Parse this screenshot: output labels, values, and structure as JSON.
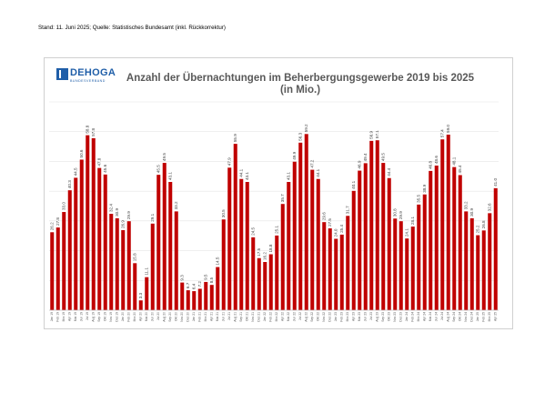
{
  "header": {
    "stand": "Stand: 11. Juni 2025; Quelle: Statistisches Bundesamt (inkl. Rückkorrektur)"
  },
  "logo": {
    "name": "DEHOGA",
    "subtitle": "BUNDESVERBAND",
    "color": "#1f5ea8"
  },
  "chart_data": {
    "type": "bar",
    "title": "Anzahl der Übernachtungen im Beherbergungsgewerbe 2019 bis 2025",
    "subtitle": "(in Mio.)",
    "bar_color": "#c00000",
    "grid": true,
    "ylim": [
      0,
      70
    ],
    "categories": [
      "Jan 19",
      "Feb 19",
      "Mrz 19",
      "Apr 19",
      "Mai 19",
      "Jun 19",
      "Jul 19",
      "Aug 19",
      "Sep 19",
      "Okt 19",
      "Nov 19",
      "Dez 19",
      "Jan 20",
      "Feb 20",
      "Mrz 20",
      "Apr 20",
      "Mai 20",
      "Jun 20",
      "Jul 20",
      "Aug 20",
      "Sep 20",
      "Okt 20",
      "Nov 20",
      "Dez 20",
      "Jan 21",
      "Feb 21",
      "Mrz 21",
      "Apr 21",
      "Mai 21",
      "Jun 21",
      "Jul 21",
      "Aug 21",
      "Sep 21",
      "Okt 21",
      "Nov 21",
      "Dez 21",
      "Jan 22",
      "Feb 22",
      "Mrz 22",
      "Apr 22",
      "Mai 22",
      "Jun 22",
      "Jul 22",
      "Aug 22",
      "Sep 22",
      "Okt 22",
      "Nov 22",
      "Dez 22",
      "Jan 23",
      "Feb 23",
      "Mrz 23",
      "Apr 23",
      "Mai 23",
      "Jun 23",
      "Jul 23",
      "Aug 23",
      "Sep 23",
      "Okt 23",
      "Nov 23",
      "Dez 23",
      "Jan 24",
      "Feb 24",
      "Mrz 24",
      "Apr 24",
      "Mai 24",
      "Jun 24",
      "Jul 24",
      "Aug 24",
      "Sep 24",
      "Okt 24",
      "Nov 24",
      "Dez 24",
      "Jan 25",
      "Feb 25",
      "Mrz 25",
      "Apr 25"
    ],
    "values": [
      26.2,
      27.8,
      33.0,
      40.3,
      44.5,
      50.6,
      58.8,
      57.8,
      47.8,
      45.6,
      32.4,
      30.9,
      26.9,
      29.9,
      15.8,
      3.3,
      11.1,
      29.1,
      45.5,
      49.5,
      43.1,
      33.2,
      9.3,
      6.7,
      6.4,
      7.2,
      9.5,
      8.5,
      14.5,
      30.5,
      47.9,
      55.9,
      44.1,
      43.1,
      24.5,
      17.5,
      16.2,
      18.8,
      25.1,
      35.7,
      43.1,
      49.9,
      56.3,
      59.2,
      47.2,
      44.1,
      29.6,
      27.5,
      24.0,
      25.4,
      31.7,
      40.1,
      46.9,
      49.4,
      56.9,
      57.1,
      49.5,
      44.4,
      30.8,
      29.9,
      24.1,
      28.1,
      35.5,
      38.9,
      46.8,
      48.6,
      57.4,
      59.0,
      48.1,
      45.4,
      33.2,
      30.9,
      25.2,
      26.8,
      32.6,
      41.0
    ]
  }
}
